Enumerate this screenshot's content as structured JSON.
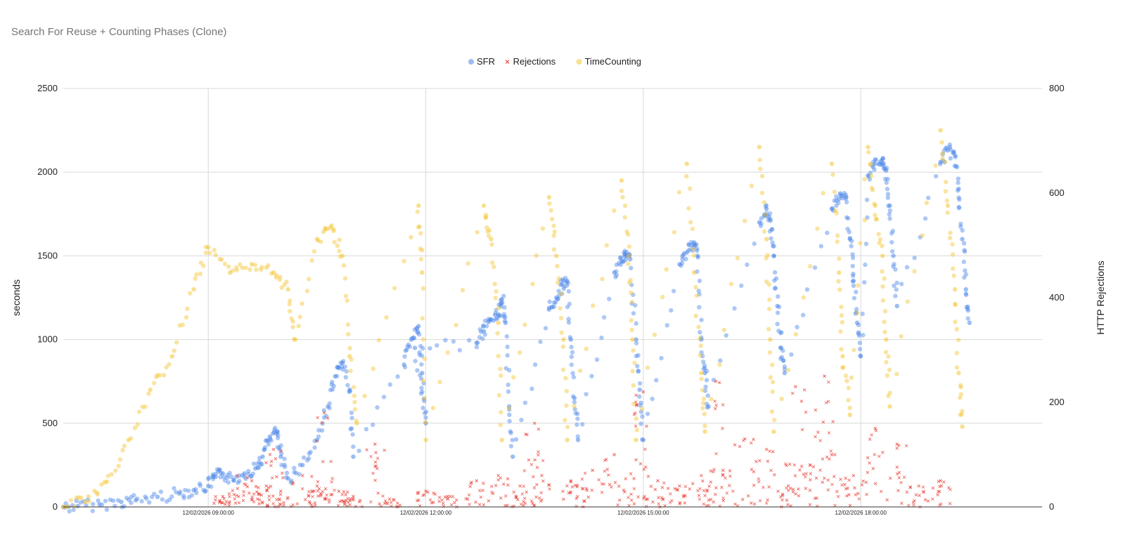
{
  "chart_data": {
    "type": "scatter",
    "title": "Search For Reuse + Counting Phases (Clone)",
    "ylabel_left": "seconds",
    "ylabel_right": "HTTP Rejections",
    "y_left_range": [
      0,
      2500
    ],
    "y_right_range": [
      0,
      800
    ],
    "y_left_ticks": [
      "0",
      "500",
      "1000",
      "1500",
      "2000",
      "2500"
    ],
    "y_right_ticks": [
      "0",
      "200",
      "400",
      "600",
      "800"
    ],
    "x_range_hours": [
      7.0,
      20.5
    ],
    "x_ticks": [
      {
        "label": "12/02/2026 09:00:00",
        "hour": 9
      },
      {
        "label": "12/02/2026 12:00:00",
        "hour": 12
      },
      {
        "label": "12/02/2026 15:00:00",
        "hour": 15
      },
      {
        "label": "12/02/2026 18:00:00",
        "hour": 18
      }
    ],
    "grid": true,
    "legend_position": "top",
    "colors": {
      "SFR": "#4a86e8",
      "Rejections": "#e8453c",
      "TimeCounting": "#f4c430"
    },
    "series": [
      {
        "name": "SFR",
        "axis": "left",
        "marker": "circle",
        "points": [
          [
            7.0,
            0
          ],
          [
            7.2,
            5
          ],
          [
            7.5,
            15
          ],
          [
            7.8,
            30
          ],
          [
            8.0,
            40
          ],
          [
            8.3,
            60
          ],
          [
            8.6,
            80
          ],
          [
            8.8,
            100
          ],
          [
            9.0,
            125
          ],
          [
            9.1,
            180
          ],
          [
            9.2,
            200
          ],
          [
            9.35,
            160
          ],
          [
            9.5,
            200
          ],
          [
            9.65,
            230
          ],
          [
            9.75,
            300
          ],
          [
            9.85,
            420
          ],
          [
            9.95,
            450
          ],
          [
            10.0,
            300
          ],
          [
            10.1,
            170
          ],
          [
            10.3,
            250
          ],
          [
            10.5,
            400
          ],
          [
            10.65,
            600
          ],
          [
            10.75,
            780
          ],
          [
            10.85,
            860
          ],
          [
            10.95,
            700
          ],
          [
            11.0,
            300
          ],
          [
            11.7,
            850
          ],
          [
            11.8,
            1000
          ],
          [
            11.9,
            1080
          ],
          [
            11.95,
            800
          ],
          [
            12.0,
            500
          ],
          [
            11.85,
            950
          ],
          [
            12.7,
            980
          ],
          [
            12.8,
            1050
          ],
          [
            12.9,
            1120
          ],
          [
            13.0,
            1150
          ],
          [
            13.05,
            1240
          ],
          [
            13.1,
            1100
          ],
          [
            13.15,
            600
          ],
          [
            13.2,
            300
          ],
          [
            13.7,
            1180
          ],
          [
            13.8,
            1250
          ],
          [
            13.88,
            1330
          ],
          [
            13.95,
            1350
          ],
          [
            14.0,
            1000
          ],
          [
            14.05,
            650
          ],
          [
            14.1,
            400
          ],
          [
            14.6,
            1400
          ],
          [
            14.7,
            1470
          ],
          [
            14.75,
            1510
          ],
          [
            14.82,
            1480
          ],
          [
            14.9,
            1000
          ],
          [
            14.95,
            700
          ],
          [
            15.0,
            400
          ],
          [
            15.5,
            1450
          ],
          [
            15.6,
            1520
          ],
          [
            15.7,
            1580
          ],
          [
            15.75,
            1500
          ],
          [
            15.8,
            1000
          ],
          [
            15.85,
            800
          ],
          [
            15.9,
            600
          ],
          [
            16.6,
            1700
          ],
          [
            16.7,
            1780
          ],
          [
            16.75,
            1720
          ],
          [
            16.8,
            1500
          ],
          [
            16.85,
            1200
          ],
          [
            16.9,
            950
          ],
          [
            16.95,
            800
          ],
          [
            17.6,
            1780
          ],
          [
            17.7,
            1840
          ],
          [
            17.8,
            1850
          ],
          [
            17.85,
            1600
          ],
          [
            17.9,
            1350
          ],
          [
            17.95,
            1100
          ],
          [
            18.0,
            900
          ],
          [
            18.1,
            1980
          ],
          [
            18.2,
            2050
          ],
          [
            18.3,
            2080
          ],
          [
            18.35,
            2010
          ],
          [
            18.4,
            1800
          ],
          [
            18.45,
            1500
          ],
          [
            18.5,
            1200
          ],
          [
            19.1,
            2060
          ],
          [
            19.2,
            2130
          ],
          [
            19.3,
            2100
          ],
          [
            19.35,
            1900
          ],
          [
            19.4,
            1600
          ],
          [
            19.45,
            1300
          ],
          [
            19.5,
            1100
          ]
        ]
      },
      {
        "name": "Rejections",
        "axis": "right",
        "marker": "cross",
        "points": [
          [
            9.2,
            20
          ],
          [
            9.4,
            60
          ],
          [
            9.6,
            50
          ],
          [
            9.8,
            40
          ],
          [
            10.0,
            30
          ],
          [
            10.3,
            60
          ],
          [
            10.5,
            40
          ],
          [
            10.8,
            30
          ],
          [
            11.0,
            20
          ],
          [
            11.5,
            15
          ],
          [
            12.0,
            30
          ],
          [
            12.3,
            20
          ],
          [
            12.7,
            50
          ],
          [
            13.0,
            60
          ],
          [
            13.3,
            40
          ],
          [
            13.6,
            60
          ],
          [
            14.0,
            50
          ],
          [
            14.3,
            70
          ],
          [
            14.6,
            100
          ],
          [
            14.9,
            90
          ],
          [
            15.2,
            50
          ],
          [
            15.5,
            40
          ],
          [
            15.8,
            60
          ],
          [
            16.1,
            70
          ],
          [
            16.4,
            130
          ],
          [
            16.7,
            110
          ],
          [
            17.0,
            40
          ],
          [
            17.3,
            80
          ],
          [
            17.6,
            100
          ],
          [
            17.9,
            60
          ],
          [
            18.2,
            150
          ],
          [
            18.5,
            120
          ],
          [
            18.8,
            40
          ],
          [
            19.1,
            50
          ],
          [
            9.9,
            110
          ],
          [
            10.6,
            180
          ],
          [
            11.3,
            120
          ],
          [
            13.5,
            160
          ],
          [
            15.0,
            220
          ],
          [
            16.0,
            240
          ],
          [
            17.1,
            230
          ],
          [
            17.5,
            250
          ]
        ]
      },
      {
        "name": "TimeCounting",
        "axis": "left",
        "marker": "circle",
        "points": [
          [
            7.0,
            0
          ],
          [
            7.3,
            30
          ],
          [
            7.6,
            150
          ],
          [
            7.9,
            400
          ],
          [
            8.2,
            700
          ],
          [
            8.5,
            900
          ],
          [
            8.8,
            1300
          ],
          [
            9.0,
            1550
          ],
          [
            9.3,
            1400
          ],
          [
            9.6,
            1450
          ],
          [
            9.9,
            1400
          ],
          [
            10.1,
            1300
          ],
          [
            10.2,
            1000
          ],
          [
            10.5,
            1600
          ],
          [
            10.7,
            1680
          ],
          [
            10.85,
            1500
          ],
          [
            10.95,
            900
          ],
          [
            11.05,
            500
          ],
          [
            11.9,
            1800
          ],
          [
            11.95,
            1400
          ],
          [
            12.0,
            400
          ],
          [
            12.8,
            1800
          ],
          [
            12.9,
            1600
          ],
          [
            13.0,
            1100
          ],
          [
            13.05,
            400
          ],
          [
            13.7,
            1850
          ],
          [
            13.8,
            1500
          ],
          [
            13.9,
            1000
          ],
          [
            13.95,
            400
          ],
          [
            14.7,
            1950
          ],
          [
            14.8,
            1500
          ],
          [
            14.85,
            1000
          ],
          [
            14.9,
            400
          ],
          [
            15.6,
            2050
          ],
          [
            15.7,
            1400
          ],
          [
            15.8,
            800
          ],
          [
            15.85,
            450
          ],
          [
            16.6,
            2150
          ],
          [
            16.7,
            1600
          ],
          [
            16.75,
            1000
          ],
          [
            16.8,
            450
          ],
          [
            17.6,
            2050
          ],
          [
            17.7,
            1400
          ],
          [
            17.75,
            900
          ],
          [
            17.85,
            550
          ],
          [
            18.1,
            2150
          ],
          [
            18.2,
            1800
          ],
          [
            18.3,
            1500
          ],
          [
            18.35,
            1000
          ],
          [
            18.4,
            600
          ],
          [
            19.1,
            2250
          ],
          [
            19.2,
            1800
          ],
          [
            19.3,
            1300
          ],
          [
            19.35,
            800
          ],
          [
            19.4,
            480
          ]
        ]
      }
    ]
  }
}
